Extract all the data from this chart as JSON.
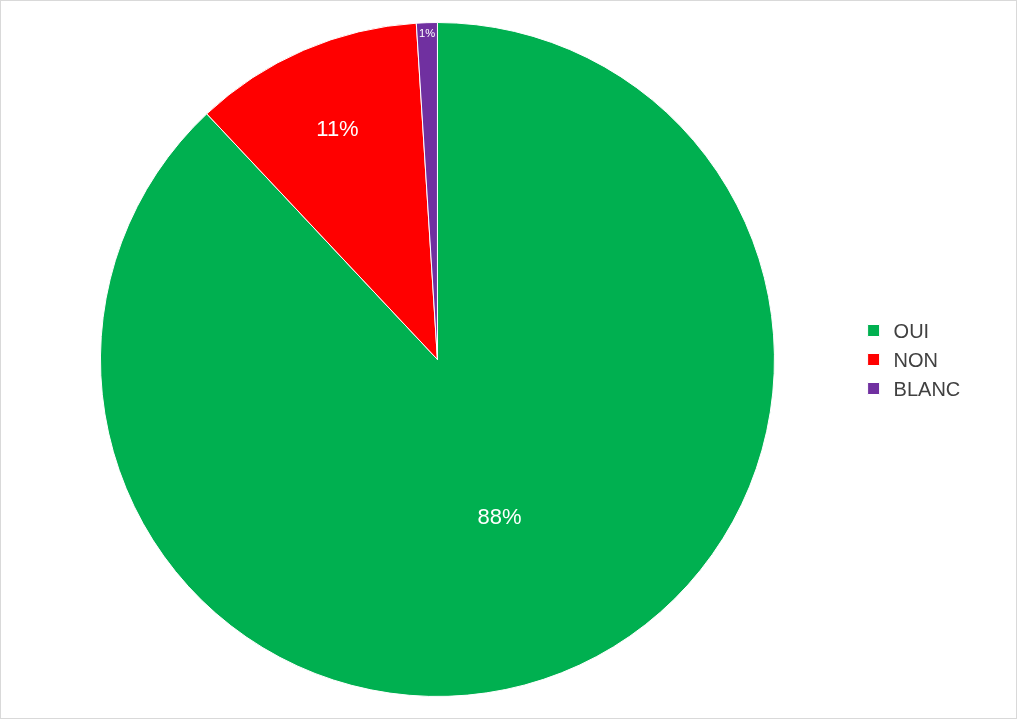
{
  "chart_data": {
    "type": "pie",
    "categories": [
      "OUI",
      "NON",
      "BLANC"
    ],
    "values": [
      88,
      11,
      1
    ],
    "colors": [
      "#00b050",
      "#ff0000",
      "#7030a0"
    ],
    "value_labels": [
      "88%",
      "11%",
      "1%"
    ],
    "legend": "right"
  }
}
